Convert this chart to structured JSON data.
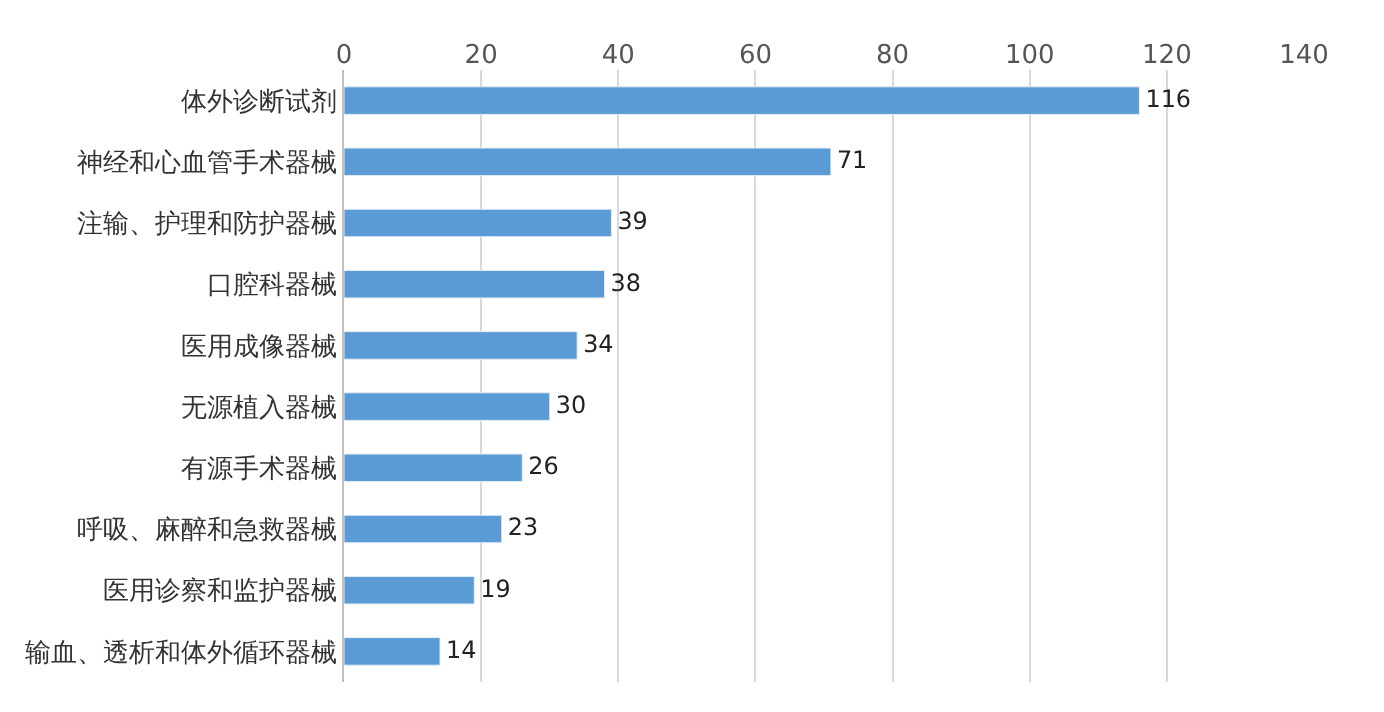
{
  "chart_data": {
    "type": "bar",
    "orientation": "horizontal",
    "categories": [
      "体外诊断试剂",
      "神经和心血管手术器械",
      "注输、护理和防护器械",
      "口腔科器械",
      "医用成像器械",
      "无源植入器械",
      "有源手术器械",
      "呼吸、麻醉和急救器械",
      "医用诊察和监护器械",
      "输血、透析和体外循环器械"
    ],
    "values": [
      116,
      71,
      39,
      38,
      34,
      30,
      26,
      23,
      19,
      14
    ],
    "color": "#5b9bd5",
    "xlim": [
      0,
      140
    ],
    "xticks": [
      0,
      20,
      40,
      60,
      80,
      100,
      120,
      140
    ],
    "grid": "x",
    "data_labels": true,
    "legend": false
  }
}
